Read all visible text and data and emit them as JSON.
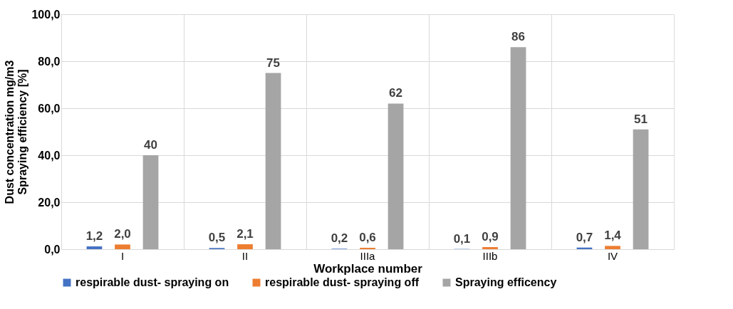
{
  "chart_data": {
    "type": "bar",
    "xlabel": "Workplace number",
    "ylabel": "Dust concentration mg/m3\nSpraying  efficiency [%]",
    "categories": [
      "I",
      "II",
      "IIIa",
      "IIIb",
      "IV"
    ],
    "series": [
      {
        "name": "respirable dust- spraying on",
        "color": "#4472c4",
        "values": [
          1.2,
          0.5,
          0.2,
          0.1,
          0.7
        ],
        "value_labels": [
          "1,2",
          "0,5",
          "0,2",
          "0,1",
          "0,7"
        ]
      },
      {
        "name": "respirable dust- spraying off",
        "color": "#ed7d31",
        "values": [
          2.0,
          2.1,
          0.6,
          0.9,
          1.4
        ],
        "value_labels": [
          "2,0",
          "2,1",
          "0,6",
          "0,9",
          "1,4"
        ]
      },
      {
        "name": "Spraying efficency",
        "color": "#a5a5a5",
        "values": [
          40,
          75,
          62,
          86,
          51
        ],
        "value_labels": [
          "40",
          "75",
          "62",
          "86",
          "51"
        ]
      }
    ],
    "ylim": [
      0,
      100
    ],
    "yticks": [
      {
        "value": 0,
        "label": "0,0"
      },
      {
        "value": 20,
        "label": "20,0"
      },
      {
        "value": 40,
        "label": "40,0"
      },
      {
        "value": 60,
        "label": "60,0"
      },
      {
        "value": 80,
        "label": "80,0"
      },
      {
        "value": 100,
        "label": "100,0"
      }
    ],
    "grid": true,
    "legend": "bottom"
  }
}
